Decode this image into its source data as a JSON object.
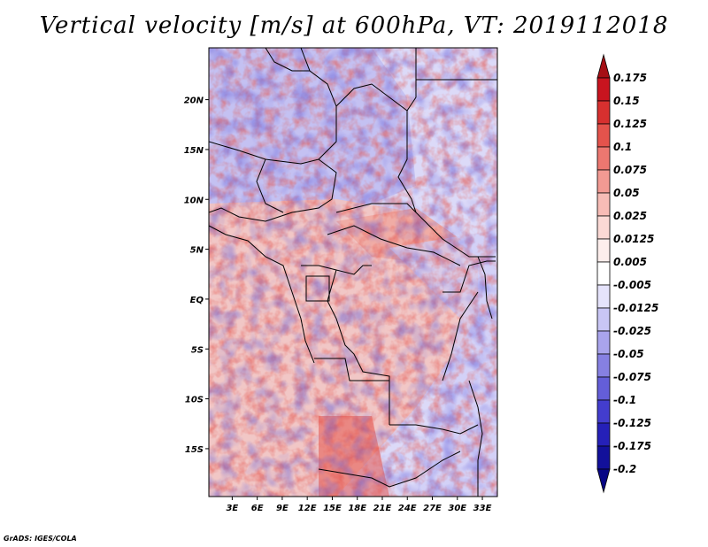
{
  "chart_data": {
    "type": "heatmap",
    "title": "Vertical velocity [m/s] at 600hPa, VT: 2019112018",
    "x_ticks": [
      "3E",
      "6E",
      "9E",
      "12E",
      "15E",
      "18E",
      "21E",
      "24E",
      "27E",
      "30E",
      "33E"
    ],
    "x_tick_values": [
      3,
      6,
      9,
      12,
      15,
      18,
      21,
      24,
      27,
      30,
      33
    ],
    "y_ticks": [
      "20N",
      "15N",
      "10N",
      "5N",
      "EQ",
      "5S",
      "10S",
      "15S"
    ],
    "y_tick_values": [
      20,
      15,
      10,
      5,
      0,
      -5,
      -10,
      -15
    ],
    "xlim": [
      0.2,
      34.8
    ],
    "ylim": [
      -19.8,
      25.2
    ],
    "colorbar": {
      "levels": [
        "0.175",
        "0.15",
        "0.125",
        "0.1",
        "0.075",
        "0.05",
        "0.025",
        "0.0125",
        "0.005",
        "-0.005",
        "-0.0125",
        "-0.025",
        "-0.05",
        "-0.075",
        "-0.1",
        "-0.125",
        "-0.175",
        "-0.2"
      ],
      "colors": [
        "#a50f15",
        "#c8141f",
        "#d7302f",
        "#e4534c",
        "#ec7770",
        "#f29a93",
        "#f7bcb6",
        "#fbd9d5",
        "#fdeeec",
        "#ffffff",
        "#e5e3fb",
        "#c9c6f5",
        "#a9a4ec",
        "#8680e2",
        "#645ed8",
        "#433dce",
        "#2520b8",
        "#12109a",
        "#080685"
      ]
    },
    "units": "m/s",
    "level": "600hPa",
    "valid_time": "2019112018"
  },
  "credit": "GrADS: IGES/COLA"
}
